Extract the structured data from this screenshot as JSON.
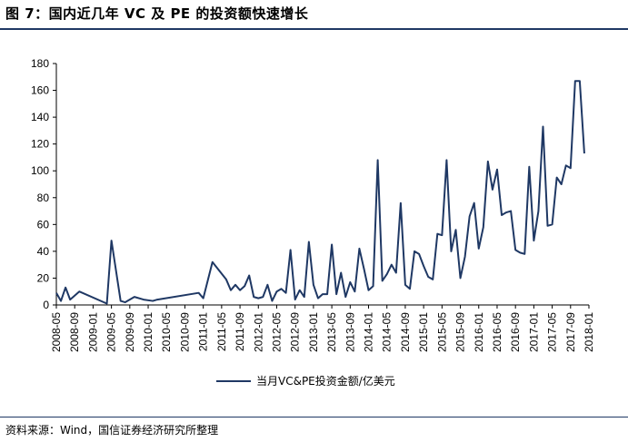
{
  "figure": {
    "title": "图 7：国内近几年 VC 及 PE 的投资额快速增长",
    "source": "资料来源：Wind，国信证券经济研究所整理"
  },
  "chart_data": {
    "type": "line",
    "title": "",
    "xlabel": "",
    "ylabel": "",
    "ylim": [
      0,
      180
    ],
    "yticks": [
      0,
      20,
      40,
      60,
      80,
      100,
      120,
      140,
      160,
      180
    ],
    "xticks": [
      "2008-05",
      "2008-09",
      "2009-01",
      "2009-05",
      "2009-09",
      "2010-01",
      "2010-05",
      "2010-09",
      "2011-01",
      "2011-05",
      "2011-09",
      "2012-01",
      "2012-05",
      "2012-09",
      "2013-01",
      "2013-05",
      "2013-09",
      "2014-01",
      "2014-05",
      "2014-09",
      "2015-01",
      "2015-05",
      "2015-09",
      "2016-01",
      "2016-05",
      "2016-09",
      "2017-01",
      "2017-05",
      "2017-09",
      "2018-01"
    ],
    "grid": false,
    "legend_position": "bottom",
    "series": [
      {
        "name": "当月VC&PE投资金额/亿美元",
        "color": "#1f3864",
        "points": [
          [
            "2008-05",
            9
          ],
          [
            "2008-06",
            3
          ],
          [
            "2008-07",
            13
          ],
          [
            "2008-08",
            4
          ],
          [
            "2008-10",
            10
          ],
          [
            "2009-04",
            1
          ],
          [
            "2009-05",
            48
          ],
          [
            "2009-07",
            3
          ],
          [
            "2009-08",
            2
          ],
          [
            "2009-10",
            6
          ],
          [
            "2009-12",
            4
          ],
          [
            "2010-02",
            3
          ],
          [
            "2010-03",
            4
          ],
          [
            "2010-12",
            9
          ],
          [
            "2011-01",
            5
          ],
          [
            "2011-03",
            32
          ],
          [
            "2011-06",
            19
          ],
          [
            "2011-07",
            11
          ],
          [
            "2011-08",
            15
          ],
          [
            "2011-09",
            11
          ],
          [
            "2011-10",
            14
          ],
          [
            "2011-11",
            22
          ],
          [
            "2011-12",
            6
          ],
          [
            "2012-01",
            5
          ],
          [
            "2012-02",
            6
          ],
          [
            "2012-03",
            15
          ],
          [
            "2012-04",
            3
          ],
          [
            "2012-05",
            10
          ],
          [
            "2012-06",
            12
          ],
          [
            "2012-07",
            9
          ],
          [
            "2012-08",
            41
          ],
          [
            "2012-09",
            4
          ],
          [
            "2012-10",
            11
          ],
          [
            "2012-11",
            6
          ],
          [
            "2012-12",
            47
          ],
          [
            "2013-01",
            15
          ],
          [
            "2013-02",
            5
          ],
          [
            "2013-03",
            8
          ],
          [
            "2013-04",
            8
          ],
          [
            "2013-05",
            45
          ],
          [
            "2013-06",
            8
          ],
          [
            "2013-07",
            24
          ],
          [
            "2013-08",
            6
          ],
          [
            "2013-09",
            17
          ],
          [
            "2013-10",
            10
          ],
          [
            "2013-11",
            42
          ],
          [
            "2013-12",
            27
          ],
          [
            "2014-01",
            11
          ],
          [
            "2014-02",
            14
          ],
          [
            "2014-03",
            108
          ],
          [
            "2014-04",
            18
          ],
          [
            "2014-05",
            23
          ],
          [
            "2014-06",
            30
          ],
          [
            "2014-07",
            24
          ],
          [
            "2014-08",
            76
          ],
          [
            "2014-09",
            15
          ],
          [
            "2014-10",
            12
          ],
          [
            "2014-11",
            40
          ],
          [
            "2014-12",
            38
          ],
          [
            "2015-01",
            29
          ],
          [
            "2015-02",
            21
          ],
          [
            "2015-03",
            19
          ],
          [
            "2015-04",
            53
          ],
          [
            "2015-05",
            52
          ],
          [
            "2015-06",
            108
          ],
          [
            "2015-07",
            40
          ],
          [
            "2015-08",
            56
          ],
          [
            "2015-09",
            20
          ],
          [
            "2015-10",
            36
          ],
          [
            "2015-11",
            66
          ],
          [
            "2015-12",
            76
          ],
          [
            "2016-01",
            42
          ],
          [
            "2016-02",
            58
          ],
          [
            "2016-03",
            107
          ],
          [
            "2016-04",
            86
          ],
          [
            "2016-05",
            101
          ],
          [
            "2016-06",
            67
          ],
          [
            "2016-07",
            69
          ],
          [
            "2016-08",
            70
          ],
          [
            "2016-09",
            41
          ],
          [
            "2016-10",
            39
          ],
          [
            "2016-11",
            38
          ],
          [
            "2016-12",
            103
          ],
          [
            "2017-01",
            48
          ],
          [
            "2017-02",
            70
          ],
          [
            "2017-03",
            133
          ],
          [
            "2017-04",
            59
          ],
          [
            "2017-05",
            60
          ],
          [
            "2017-06",
            95
          ],
          [
            "2017-07",
            90
          ],
          [
            "2017-08",
            104
          ],
          [
            "2017-09",
            102
          ],
          [
            "2017-10",
            167
          ],
          [
            "2017-11",
            167
          ],
          [
            "2017-12",
            113
          ]
        ]
      }
    ]
  }
}
